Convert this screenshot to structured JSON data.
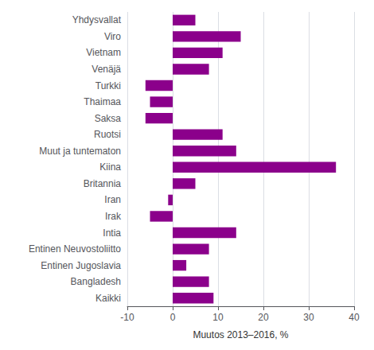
{
  "chart_data": {
    "type": "bar",
    "orientation": "horizontal",
    "categories": [
      "Kaikki",
      "Bangladesh",
      "Entinen Jugoslavia",
      "Entinen Neuvostoliitto",
      "Intia",
      "Irak",
      "Iran",
      "Britannia",
      "Kiina",
      "Muut ja tuntematon",
      "Ruotsi",
      "Saksa",
      "Thaimaa",
      "Turkki",
      "Venäjä",
      "Vietnam",
      "Viro",
      "Yhdysvallat"
    ],
    "values": [
      9,
      8,
      3,
      8,
      14,
      -5,
      -1,
      5,
      36,
      14,
      11,
      -6,
      -5,
      -6,
      8,
      11,
      15,
      5
    ],
    "color": "#8B008B",
    "xlabel": "Muutos 2013–2016, %",
    "xlim": [
      -10,
      40
    ],
    "xticks": [
      -10,
      0,
      10,
      20,
      30,
      40
    ],
    "grid": true
  }
}
